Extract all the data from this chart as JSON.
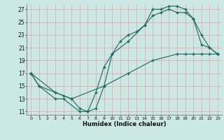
{
  "xlabel": "Humidex (Indice chaleur)",
  "bg_color": "#cce8e4",
  "grid_color": "#e8a0a0",
  "line_color": "#1a6860",
  "xlim": [
    -0.5,
    23.5
  ],
  "ylim": [
    10.5,
    27.8
  ],
  "xtick_vals": [
    0,
    1,
    2,
    3,
    4,
    5,
    6,
    7,
    8,
    9,
    10,
    11,
    12,
    13,
    14,
    15,
    16,
    17,
    18,
    19,
    20,
    21,
    22,
    23
  ],
  "ytick_vals": [
    11,
    13,
    15,
    17,
    19,
    21,
    23,
    25,
    27
  ],
  "series": [
    {
      "x": [
        0,
        1,
        3,
        4,
        6,
        7,
        8,
        9,
        10,
        12,
        14,
        15,
        16,
        17,
        18,
        19,
        20,
        21,
        22,
        23
      ],
      "y": [
        17,
        15,
        13,
        13,
        11,
        11,
        14,
        18,
        20,
        22,
        24.5,
        27,
        27,
        27.5,
        27.5,
        27,
        25.5,
        23,
        21,
        20
      ]
    },
    {
      "x": [
        0,
        3,
        4,
        5,
        6,
        7,
        8,
        9,
        10,
        11,
        12,
        13,
        14,
        15,
        16,
        17,
        18,
        19,
        20,
        21,
        22,
        23
      ],
      "y": [
        17,
        14,
        13.5,
        13,
        11.5,
        11,
        11.5,
        15,
        20,
        22,
        23,
        23.5,
        24.5,
        26,
        26.5,
        27,
        26.5,
        26.5,
        25.5,
        21.5,
        21,
        20
      ]
    },
    {
      "x": [
        0,
        1,
        3,
        5,
        9,
        12,
        15,
        18,
        19,
        20,
        21,
        22,
        23
      ],
      "y": [
        17,
        15,
        14,
        13,
        15,
        17,
        19,
        20,
        20,
        20,
        20,
        20,
        20
      ]
    }
  ]
}
